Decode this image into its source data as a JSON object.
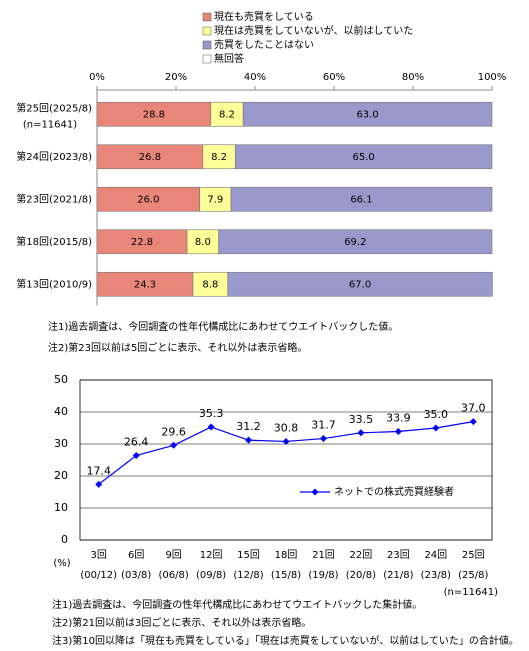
{
  "chart_data": [
    {
      "type": "bar",
      "orientation": "horizontal",
      "stacked": true,
      "categories": [
        "第25回(2025/8)",
        "第24回(2023/8)",
        "第23回(2021/8)",
        "第18回(2015/8)",
        "第13回(2010/9)"
      ],
      "sample_note": "(n=11641)",
      "series": [
        {
          "name": "現在も売買をしている",
          "color": "#E9867A",
          "values": [
            28.8,
            26.8,
            26.0,
            22.8,
            24.3
          ],
          "value_labels": [
            "28.8",
            "26.8",
            "26.0",
            "22.8",
            "24.3"
          ]
        },
        {
          "name": "現在は売買をしていないが、以前はしていた",
          "color": "#FFFF99",
          "values": [
            8.2,
            8.2,
            7.9,
            8.0,
            8.8
          ],
          "value_labels": [
            "8.2",
            "8.2",
            "7.9",
            "8.0",
            "8.8"
          ]
        },
        {
          "name": "売買をしたことはない",
          "color": "#9999CC",
          "values": [
            63.0,
            65.0,
            66.1,
            69.2,
            67.0
          ],
          "value_labels": [
            "63.0",
            "65.0",
            "66.1",
            "69.2",
            "67.0"
          ]
        },
        {
          "name": "無回答",
          "color": "#FFFFFF",
          "values": [
            0,
            0,
            0,
            0,
            0
          ]
        }
      ],
      "xlim": [
        0,
        100
      ],
      "xticks": [
        {
          "value": 0,
          "label": "0%"
        },
        {
          "value": 20,
          "label": "20%"
        },
        {
          "value": 40,
          "label": "40%"
        },
        {
          "value": 60,
          "label": "60%"
        },
        {
          "value": 80,
          "label": "80%"
        },
        {
          "value": 100,
          "label": "100%"
        }
      ],
      "notes": [
        "注1)過去調査は、今回調査の性年代構成比にあわせてウエイトバックした値。",
        "注2)第23回以前は5回ごとに表示、それ以外は表示省略。"
      ]
    },
    {
      "type": "line",
      "categories": [
        "3回",
        "6回",
        "9回",
        "12回",
        "15回",
        "18回",
        "21回",
        "22回",
        "23回",
        "24回",
        "25回"
      ],
      "category_dates": [
        "(00/12)",
        "(03/8)",
        "(06/8)",
        "(09/8)",
        "(12/8)",
        "(15/8)",
        "(19/8)",
        "(20/8)",
        "(21/8)",
        "(23/8)",
        "(25/8)"
      ],
      "series": [
        {
          "name": "ネットでの株式売買経験者",
          "color": "#0000FF",
          "values": [
            17.4,
            26.4,
            29.6,
            35.3,
            31.2,
            30.8,
            31.7,
            33.5,
            33.9,
            35.0,
            37.0
          ],
          "value_labels": [
            "17.4",
            "26.4",
            "29.6",
            "35.3",
            "31.2",
            "30.8",
            "31.7",
            "33.5",
            "33.9",
            "35.0",
            "37.0"
          ]
        }
      ],
      "ylim": [
        0,
        50
      ],
      "yticks": [
        0,
        10,
        20,
        30,
        40,
        50
      ],
      "grid": true,
      "y_unit": "(%)",
      "sample_note": "(n=11641)",
      "notes": [
        "注1)過去調査は、今回調査の性年代構成比にあわせてウエイトバックした集計値。",
        "注2)第21回以前は3回ごとに表示、それ以外は表示省略。",
        "注3)第10回以降は「現在も売買をしている」「現在は売買をしていないが、以前はしていた」の合計値。"
      ]
    }
  ]
}
